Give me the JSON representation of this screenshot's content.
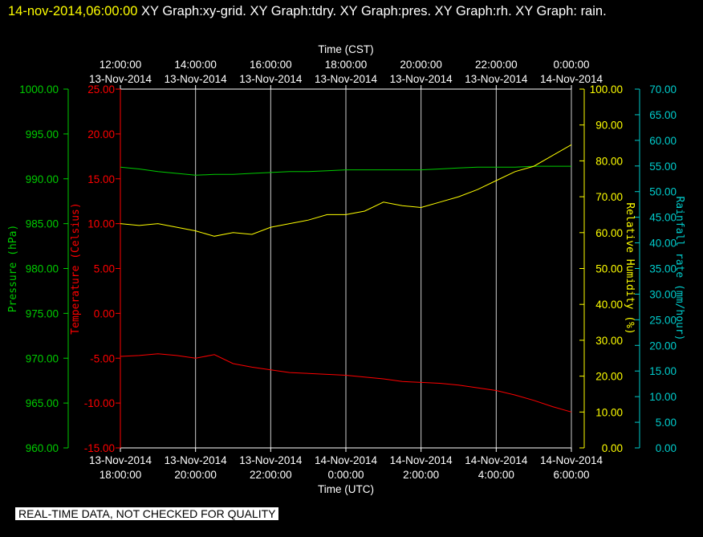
{
  "header": {
    "timestamp": "14-nov-2014,06:00:00",
    "title_rest": " XY Graph:xy-grid.  XY Graph:tdry.  XY Graph:pres.  XY Graph:rh.  XY Graph: rain."
  },
  "footer": {
    "notice": "REAL-TIME DATA, NOT CHECKED FOR QUALITY"
  },
  "colors": {
    "background": "#000000",
    "grid": "#ffffff",
    "pressure": "#00cc00",
    "temperature": "#ff0000",
    "humidity": "#ffff00",
    "rain": "#00cccc"
  },
  "chart_data": {
    "type": "line",
    "grid": true,
    "x_top": {
      "label": "Time (CST)",
      "ticks": [
        {
          "time": "12:00:00",
          "date": "13-Nov-2014"
        },
        {
          "time": "14:00:00",
          "date": "13-Nov-2014"
        },
        {
          "time": "16:00:00",
          "date": "13-Nov-2014"
        },
        {
          "time": "18:00:00",
          "date": "13-Nov-2014"
        },
        {
          "time": "20:00:00",
          "date": "13-Nov-2014"
        },
        {
          "time": "22:00:00",
          "date": "13-Nov-2014"
        },
        {
          "time": "0:00:00",
          "date": "14-Nov-2014"
        }
      ]
    },
    "x_bottom": {
      "label": "Time (UTC)",
      "range": [
        "2014-11-13 18:00:00",
        "2014-11-14 06:00:00"
      ],
      "ticks": [
        {
          "date": "13-Nov-2014",
          "time": "18:00:00"
        },
        {
          "date": "13-Nov-2014",
          "time": "20:00:00"
        },
        {
          "date": "13-Nov-2014",
          "time": "22:00:00"
        },
        {
          "date": "14-Nov-2014",
          "time": "0:00:00"
        },
        {
          "date": "14-Nov-2014",
          "time": "2:00:00"
        },
        {
          "date": "14-Nov-2014",
          "time": "4:00:00"
        },
        {
          "date": "14-Nov-2014",
          "time": "6:00:00"
        }
      ]
    },
    "axes": {
      "pressure": {
        "label": "Pressure (hPa)",
        "ylim": [
          960,
          1000
        ],
        "ticks": [
          "960.00",
          "965.00",
          "970.00",
          "975.00",
          "980.00",
          "985.00",
          "990.00",
          "995.00",
          "1000.00"
        ]
      },
      "temperature": {
        "label": "Temperature (Celsius)",
        "ylim": [
          -15,
          25
        ],
        "ticks": [
          "-15.00",
          "-10.00",
          "-5.00",
          "0.00",
          "5.00",
          "10.00",
          "15.00",
          "20.00",
          "25.00"
        ]
      },
      "humidity": {
        "label": "Relative Humidity (%)",
        "ylim": [
          0,
          100
        ],
        "ticks": [
          "0.00",
          "10.00",
          "20.00",
          "30.00",
          "40.00",
          "50.00",
          "60.00",
          "70.00",
          "80.00",
          "90.00",
          "100.00"
        ]
      },
      "rain": {
        "label": "Rainfall rate (mm/hour)",
        "ylim": [
          0,
          70
        ],
        "ticks": [
          "0.00",
          "5.00",
          "10.00",
          "15.00",
          "20.00",
          "25.00",
          "30.00",
          "35.00",
          "40.00",
          "45.00",
          "50.00",
          "55.00",
          "60.00",
          "65.00",
          "70.00"
        ]
      }
    },
    "series": [
      {
        "key": "pressure",
        "x": [
          "2014-11-13 18:00",
          "2014-11-13 18:30",
          "2014-11-13 19:00",
          "2014-11-13 19:30",
          "2014-11-13 20:00",
          "2014-11-13 20:30",
          "2014-11-13 21:00",
          "2014-11-13 21:30",
          "2014-11-13 22:00",
          "2014-11-13 22:30",
          "2014-11-13 23:00",
          "2014-11-13 23:30",
          "2014-11-14 00:00",
          "2014-11-14 00:30",
          "2014-11-14 01:00",
          "2014-11-14 01:30",
          "2014-11-14 02:00",
          "2014-11-14 02:30",
          "2014-11-14 03:00",
          "2014-11-14 03:30",
          "2014-11-14 04:00",
          "2014-11-14 04:30",
          "2014-11-14 05:00",
          "2014-11-14 05:30",
          "2014-11-14 06:00"
        ],
        "y": [
          991.3,
          991.1,
          990.8,
          990.6,
          990.4,
          990.5,
          990.5,
          990.6,
          990.7,
          990.8,
          990.8,
          990.9,
          991.0,
          991.0,
          991.0,
          991.0,
          991.0,
          991.1,
          991.2,
          991.3,
          991.3,
          991.3,
          991.4,
          991.4,
          991.4
        ]
      },
      {
        "key": "temperature",
        "x": [
          "2014-11-13 18:00",
          "2014-11-13 18:30",
          "2014-11-13 19:00",
          "2014-11-13 19:30",
          "2014-11-13 20:00",
          "2014-11-13 20:30",
          "2014-11-13 21:00",
          "2014-11-13 21:30",
          "2014-11-13 22:00",
          "2014-11-13 22:30",
          "2014-11-13 23:00",
          "2014-11-13 23:30",
          "2014-11-14 00:00",
          "2014-11-14 00:30",
          "2014-11-14 01:00",
          "2014-11-14 01:30",
          "2014-11-14 02:00",
          "2014-11-14 02:30",
          "2014-11-14 03:00",
          "2014-11-14 03:30",
          "2014-11-14 04:00",
          "2014-11-14 04:30",
          "2014-11-14 05:00",
          "2014-11-14 05:30",
          "2014-11-14 06:00"
        ],
        "y": [
          -4.8,
          -4.7,
          -4.5,
          -4.7,
          -5.0,
          -4.6,
          -5.6,
          -6.0,
          -6.3,
          -6.6,
          -6.7,
          -6.8,
          -6.9,
          -7.1,
          -7.3,
          -7.6,
          -7.7,
          -7.8,
          -8.0,
          -8.3,
          -8.6,
          -9.1,
          -9.7,
          -10.4,
          -11.0
        ]
      },
      {
        "key": "humidity",
        "x": [
          "2014-11-13 18:00",
          "2014-11-13 18:30",
          "2014-11-13 19:00",
          "2014-11-13 19:30",
          "2014-11-13 20:00",
          "2014-11-13 20:30",
          "2014-11-13 21:00",
          "2014-11-13 21:30",
          "2014-11-13 22:00",
          "2014-11-13 22:30",
          "2014-11-13 23:00",
          "2014-11-13 23:30",
          "2014-11-14 00:00",
          "2014-11-14 00:30",
          "2014-11-14 01:00",
          "2014-11-14 01:30",
          "2014-11-14 02:00",
          "2014-11-14 02:30",
          "2014-11-14 03:00",
          "2014-11-14 03:30",
          "2014-11-14 04:00",
          "2014-11-14 04:30",
          "2014-11-14 05:00",
          "2014-11-14 05:30",
          "2014-11-14 06:00"
        ],
        "y": [
          62.5,
          62.0,
          62.5,
          61.5,
          60.5,
          59.0,
          60.0,
          59.5,
          61.5,
          62.5,
          63.5,
          65.0,
          65.0,
          66.0,
          68.5,
          67.5,
          67.0,
          68.5,
          70.0,
          72.0,
          74.5,
          77.0,
          78.5,
          81.5,
          84.5
        ]
      },
      {
        "key": "rain",
        "x": [],
        "y": []
      }
    ]
  }
}
